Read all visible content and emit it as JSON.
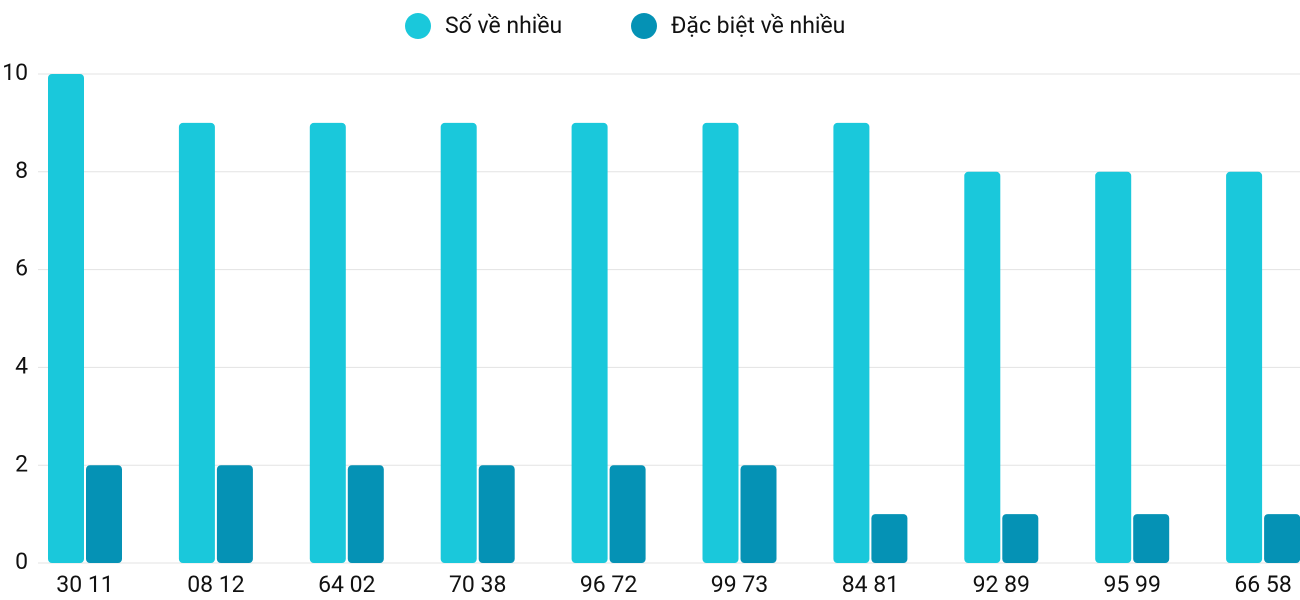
{
  "chart_data": {
    "type": "bar",
    "categories": [
      "30 11",
      "08 12",
      "64 02",
      "70 38",
      "96 72",
      "99 73",
      "84 81",
      "92 89",
      "95 99",
      "66 58"
    ],
    "series": [
      {
        "name": "Số về nhiều",
        "color": "#1ac8db",
        "values": [
          10,
          9,
          9,
          9,
          9,
          9,
          9,
          8,
          8,
          8
        ]
      },
      {
        "name": "Đặc biệt về nhiều",
        "color": "#0592b5",
        "values": [
          2,
          2,
          2,
          2,
          2,
          2,
          1,
          1,
          1,
          1
        ]
      }
    ],
    "ylim": [
      0,
      10
    ],
    "yticks": [
      0,
      2,
      4,
      6,
      8,
      10
    ],
    "grid": true,
    "legend": "top"
  }
}
